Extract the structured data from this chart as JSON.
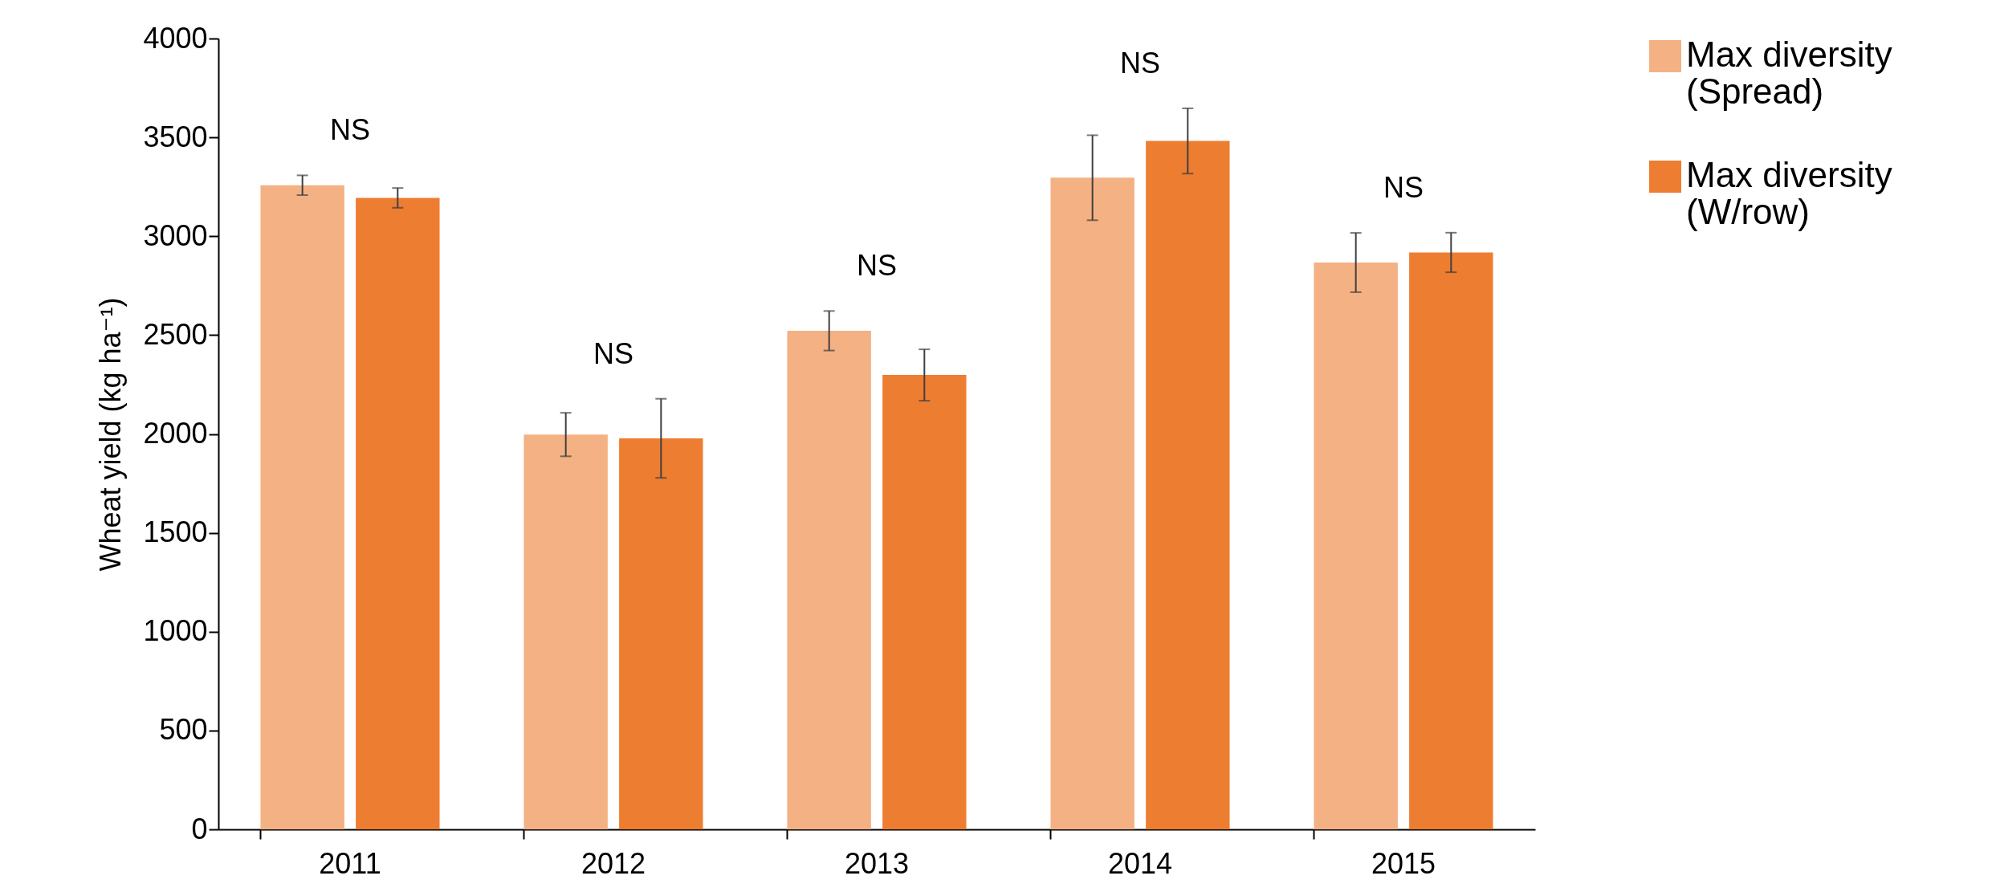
{
  "chart_data": {
    "type": "bar",
    "ylabel": "Wheat yield (kg ha⁻¹)",
    "categories": [
      "2011",
      "2012",
      "2013",
      "2014",
      "2015"
    ],
    "series": [
      {
        "name": "Max diversity (Spread)",
        "color": "#f4b183",
        "values": [
          3258,
          1997,
          2522,
          3296,
          2867
        ],
        "errors": [
          50,
          110,
          100,
          215,
          150
        ]
      },
      {
        "name": "Max diversity (W/row)",
        "color": "#ed7d31",
        "values": [
          3194,
          1978,
          2298,
          3482,
          2918
        ],
        "errors": [
          50,
          200,
          130,
          165,
          100
        ]
      }
    ],
    "ylim": [
      0,
      4000
    ],
    "yticks": [
      0,
      500,
      1000,
      1500,
      2000,
      2500,
      3000,
      3500,
      4000
    ],
    "grid": false,
    "legend": "right",
    "annotations": [
      "NS",
      "NS",
      "NS",
      "NS",
      "NS"
    ]
  }
}
